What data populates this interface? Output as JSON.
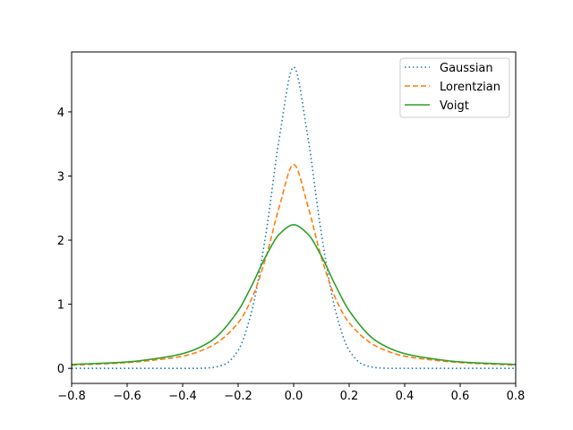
{
  "chart_data": {
    "type": "line",
    "title": "",
    "xlabel": "",
    "ylabel": "",
    "xlim": [
      -0.8,
      0.8
    ],
    "ylim": [
      -0.235,
      4.935
    ],
    "grid": false,
    "legend_placement": "top-right",
    "xticks": [
      -0.8,
      -0.6,
      -0.4,
      -0.2,
      0.0,
      0.2,
      0.4,
      0.6,
      0.8
    ],
    "xtick_labels": [
      "−0.8",
      "−0.6",
      "−0.4",
      "−0.2",
      "0.0",
      "0.2",
      "0.4",
      "0.6",
      "0.8"
    ],
    "yticks": [
      0,
      1,
      2,
      3,
      4
    ],
    "ytick_labels": [
      "0",
      "1",
      "2",
      "3",
      "4"
    ],
    "series": [
      {
        "name": "Gaussian",
        "color": "#1f77b4",
        "style": "dotted",
        "x": [
          -0.8,
          -0.35,
          -0.3,
          -0.25,
          -0.2,
          -0.15,
          -0.1,
          -0.05,
          0.0,
          0.05,
          0.1,
          0.15,
          0.2,
          0.25,
          0.3,
          0.35,
          0.8
        ],
        "y": [
          0.0,
          0.0,
          0.01,
          0.06,
          0.28,
          0.91,
          2.1,
          3.64,
          4.7,
          3.64,
          2.1,
          0.91,
          0.28,
          0.06,
          0.01,
          0.0,
          0.0
        ]
      },
      {
        "name": "Lorentzian",
        "color": "#ff7f0e",
        "style": "dashed",
        "x": [
          -0.8,
          -0.6,
          -0.5,
          -0.4,
          -0.3,
          -0.2,
          -0.15,
          -0.1,
          -0.05,
          0.0,
          0.05,
          0.1,
          0.15,
          0.2,
          0.3,
          0.4,
          0.5,
          0.6,
          0.8
        ],
        "y": [
          0.05,
          0.09,
          0.13,
          0.19,
          0.34,
          0.71,
          1.1,
          1.73,
          2.55,
          3.18,
          2.55,
          1.73,
          1.1,
          0.71,
          0.34,
          0.19,
          0.13,
          0.09,
          0.05
        ]
      },
      {
        "name": "Voigt",
        "color": "#2ca02c",
        "style": "solid",
        "x": [
          -0.8,
          -0.6,
          -0.5,
          -0.4,
          -0.3,
          -0.2,
          -0.15,
          -0.1,
          -0.05,
          0.0,
          0.05,
          0.1,
          0.15,
          0.2,
          0.3,
          0.4,
          0.5,
          0.6,
          0.8
        ],
        "y": [
          0.06,
          0.1,
          0.15,
          0.23,
          0.42,
          0.9,
          1.3,
          1.75,
          2.1,
          2.24,
          2.1,
          1.75,
          1.3,
          0.9,
          0.42,
          0.23,
          0.15,
          0.1,
          0.06
        ]
      }
    ]
  }
}
